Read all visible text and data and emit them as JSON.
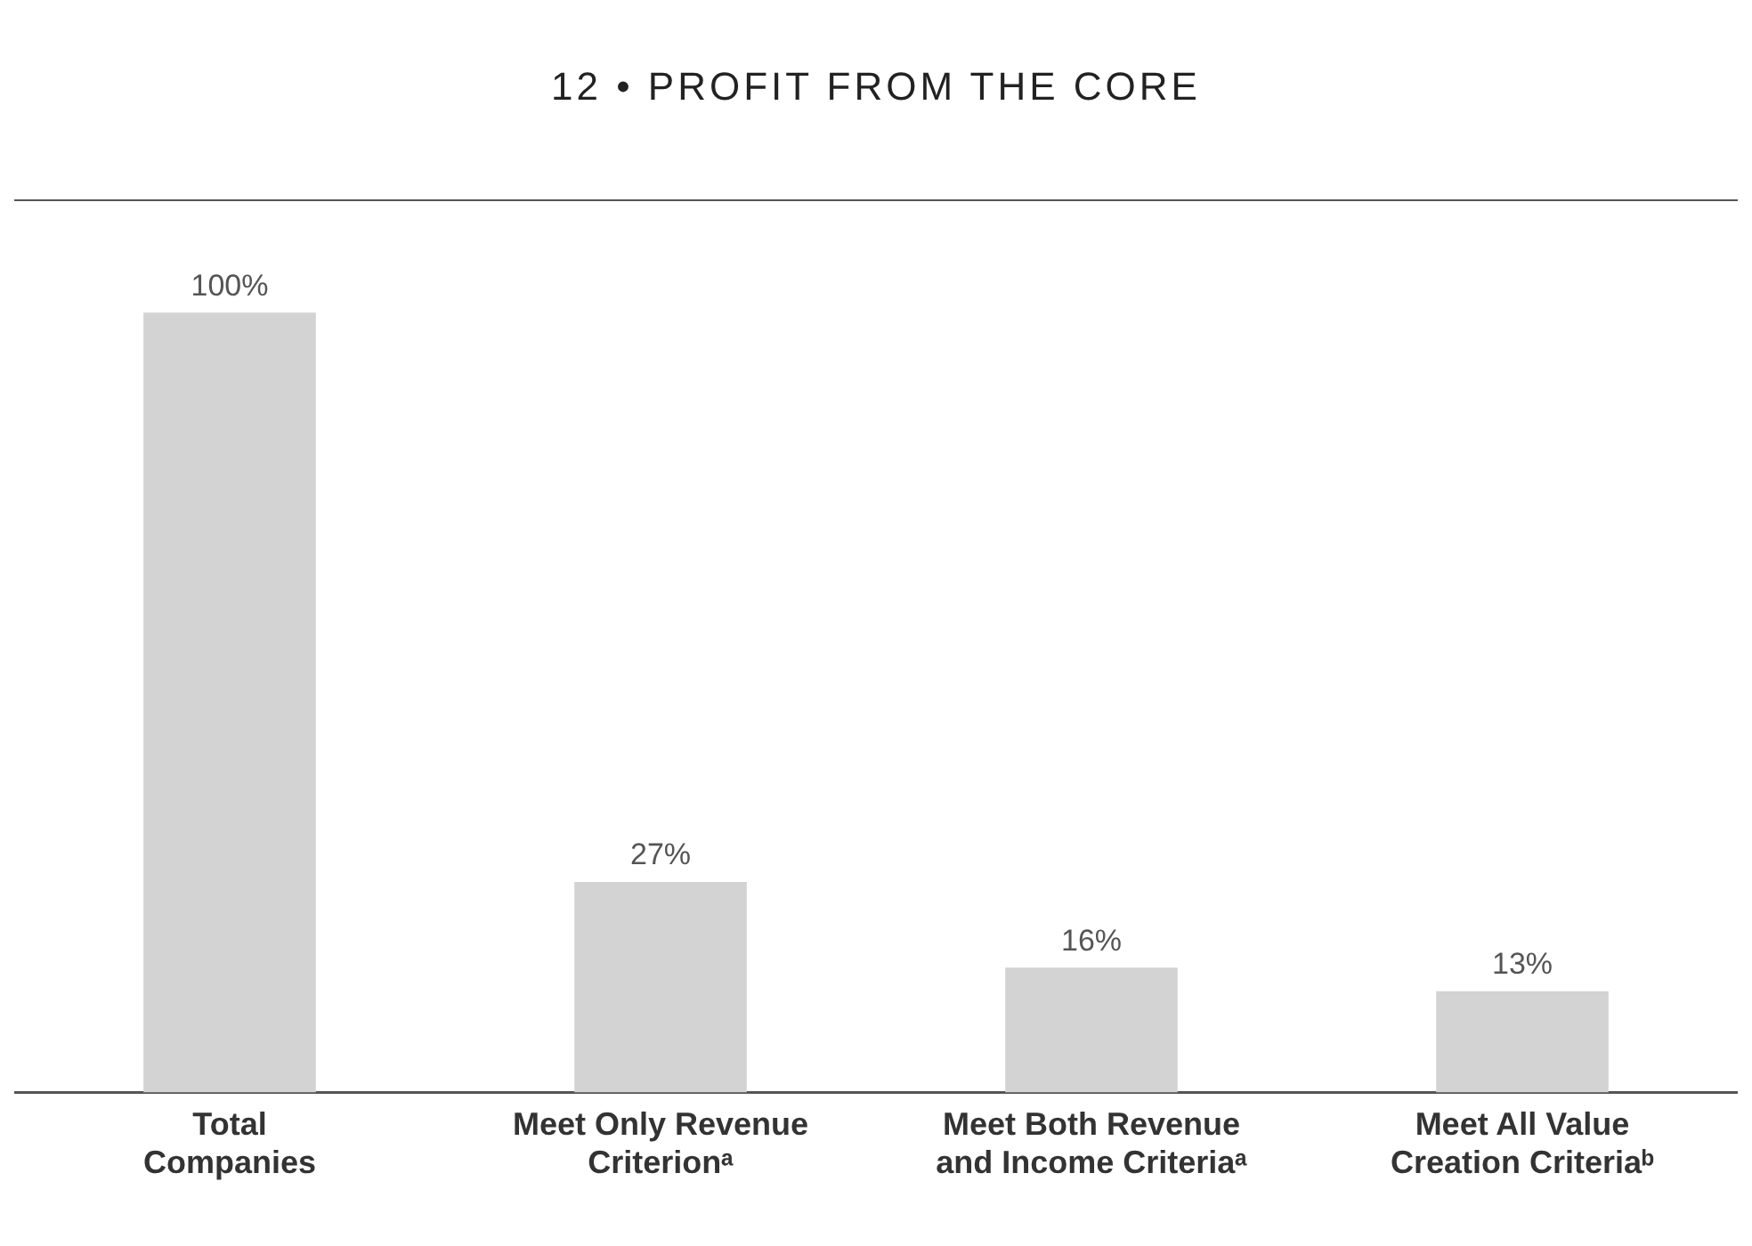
{
  "chart_data": {
    "type": "bar",
    "title": "12 • PROFIT FROM THE CORE",
    "categories": [
      "Total Companies",
      "Meet Only Revenue Criterionᵃ",
      "Meet Both Revenue and Income Criteriaᵃ",
      "Meet All Value Creation Criteriaᵇ"
    ],
    "values": [
      100,
      27,
      16,
      13
    ],
    "value_labels": [
      "100%",
      "27%",
      "16%",
      "13%"
    ],
    "color": "#d3d3d3",
    "tick_labels": "x",
    "grid": false,
    "legend": false
  }
}
